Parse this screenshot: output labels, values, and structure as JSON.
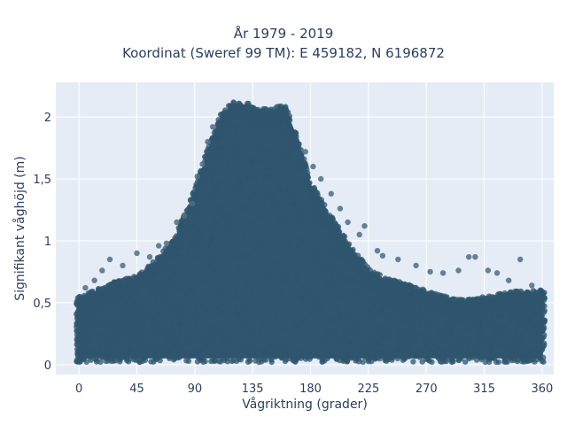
{
  "chart_data": {
    "type": "scatter",
    "title": "År 1979 - 2019",
    "subtitle": "Koordinat (Sweref 99 TM): E 459182, N 6196872",
    "xlabel": "Vågriktning (grader)",
    "ylabel": "Signifikant våghöjd (m)",
    "xlim": [
      -18,
      369
    ],
    "ylim": [
      -0.08,
      2.28
    ],
    "x_ticks": [
      0,
      45,
      90,
      135,
      180,
      225,
      270,
      315,
      360
    ],
    "x_tick_labels": [
      "0",
      "45",
      "90",
      "135",
      "180",
      "225",
      "270",
      "315",
      "360"
    ],
    "y_ticks": [
      0,
      0.5,
      1,
      1.5,
      2
    ],
    "y_tick_labels": [
      "0",
      "0,5",
      "1",
      "1,5",
      "2"
    ],
    "grid": true,
    "legend": "none",
    "series": [
      {
        "color": "#2f566e",
        "envelope": [
          {
            "x": 0,
            "y_max": 0.55
          },
          {
            "x": 15,
            "y_max": 0.62
          },
          {
            "x": 30,
            "y_max": 0.68
          },
          {
            "x": 45,
            "y_max": 0.72
          },
          {
            "x": 60,
            "y_max": 0.85
          },
          {
            "x": 75,
            "y_max": 1.05
          },
          {
            "x": 90,
            "y_max": 1.42
          },
          {
            "x": 100,
            "y_max": 1.75
          },
          {
            "x": 110,
            "y_max": 2.02
          },
          {
            "x": 120,
            "y_max": 2.13
          },
          {
            "x": 130,
            "y_max": 2.12
          },
          {
            "x": 140,
            "y_max": 2.06
          },
          {
            "x": 150,
            "y_max": 2.08
          },
          {
            "x": 160,
            "y_max": 2.1
          },
          {
            "x": 170,
            "y_max": 1.85
          },
          {
            "x": 180,
            "y_max": 1.48
          },
          {
            "x": 195,
            "y_max": 1.22
          },
          {
            "x": 210,
            "y_max": 0.98
          },
          {
            "x": 225,
            "y_max": 0.78
          },
          {
            "x": 240,
            "y_max": 0.7
          },
          {
            "x": 255,
            "y_max": 0.65
          },
          {
            "x": 270,
            "y_max": 0.6
          },
          {
            "x": 285,
            "y_max": 0.55
          },
          {
            "x": 300,
            "y_max": 0.52
          },
          {
            "x": 315,
            "y_max": 0.55
          },
          {
            "x": 330,
            "y_max": 0.58
          },
          {
            "x": 345,
            "y_max": 0.6
          },
          {
            "x": 360,
            "y_max": 0.6
          }
        ],
        "y_min": 0.02,
        "outliers": [
          {
            "x": 5,
            "y": 0.62
          },
          {
            "x": 12,
            "y": 0.68
          },
          {
            "x": 18,
            "y": 0.76
          },
          {
            "x": 24,
            "y": 0.85
          },
          {
            "x": 34,
            "y": 0.8
          },
          {
            "x": 45,
            "y": 0.9
          },
          {
            "x": 55,
            "y": 0.87
          },
          {
            "x": 62,
            "y": 0.96
          },
          {
            "x": 68,
            "y": 0.98
          },
          {
            "x": 76,
            "y": 1.15
          },
          {
            "x": 82,
            "y": 1.2
          },
          {
            "x": 88,
            "y": 1.3
          },
          {
            "x": 92,
            "y": 1.52
          },
          {
            "x": 96,
            "y": 1.62
          },
          {
            "x": 100,
            "y": 1.8
          },
          {
            "x": 104,
            "y": 1.92
          },
          {
            "x": 176,
            "y": 1.72
          },
          {
            "x": 182,
            "y": 1.6
          },
          {
            "x": 188,
            "y": 1.5
          },
          {
            "x": 196,
            "y": 1.38
          },
          {
            "x": 203,
            "y": 1.26
          },
          {
            "x": 209,
            "y": 1.15
          },
          {
            "x": 218,
            "y": 1.05
          },
          {
            "x": 222,
            "y": 1.12
          },
          {
            "x": 232,
            "y": 0.92
          },
          {
            "x": 236,
            "y": 0.88
          },
          {
            "x": 248,
            "y": 0.85
          },
          {
            "x": 262,
            "y": 0.8
          },
          {
            "x": 273,
            "y": 0.75
          },
          {
            "x": 283,
            "y": 0.74
          },
          {
            "x": 295,
            "y": 0.76
          },
          {
            "x": 303,
            "y": 0.87
          },
          {
            "x": 308,
            "y": 0.87
          },
          {
            "x": 318,
            "y": 0.76
          },
          {
            "x": 325,
            "y": 0.74
          },
          {
            "x": 334,
            "y": 0.68
          },
          {
            "x": 343,
            "y": 0.85
          },
          {
            "x": 352,
            "y": 0.64
          }
        ]
      }
    ]
  }
}
